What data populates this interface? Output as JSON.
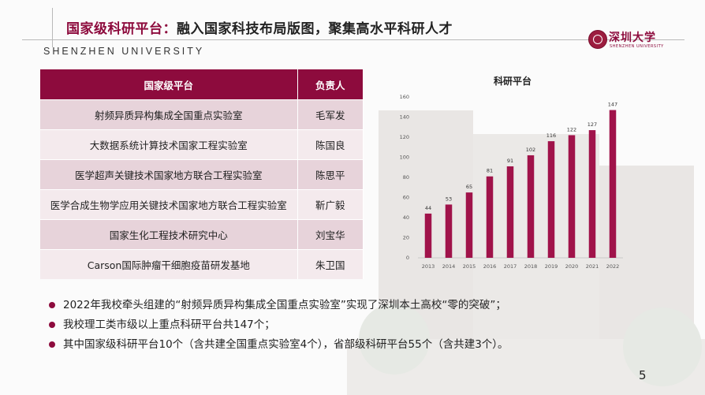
{
  "header": {
    "title_accent": "国家级科研平台：",
    "title_rest": "融入国家科技布局版图，聚集高水平科研人才",
    "subtitle": "SHENZHEN UNIVERSITY"
  },
  "logo": {
    "text": "深圳大学",
    "en": "SHENZHEN UNIVERSITY"
  },
  "table": {
    "headers": [
      "国家级平台",
      "负责人"
    ],
    "rows": [
      [
        "射频异质异构集成全国重点实验室",
        "毛军发"
      ],
      [
        "大数据系统计算技术国家工程实验室",
        "陈国良"
      ],
      [
        "医学超声关键技术国家地方联合工程实验室",
        "陈思平"
      ],
      [
        "医学合成生物学应用关键技术国家地方联合工程实验室",
        "靳广毅"
      ],
      [
        "国家生化工程技术研究中心",
        "刘宝华"
      ],
      [
        "Carson国际肿瘤干细胞疫苗研发基地",
        "朱卫国"
      ]
    ]
  },
  "chart_data": {
    "type": "bar",
    "title": "科研平台",
    "categories": [
      "2013",
      "2014",
      "2015",
      "2016",
      "2017",
      "2018",
      "2019",
      "2020",
      "2021",
      "2022"
    ],
    "values": [
      44,
      53,
      65,
      81,
      91,
      102,
      116,
      122,
      127,
      147
    ],
    "ylim": [
      0,
      160
    ],
    "yticks": [
      0,
      20,
      40,
      60,
      80,
      100,
      120,
      140,
      160
    ],
    "color": "#a0134a",
    "grid": false,
    "data_labels": true
  },
  "bullets": [
    "2022年我校牵头组建的“射频异质异构集成全国重点实验室”实现了深圳本土高校“零的突破”；",
    "我校理工类市级以上重点科研平台共147个；",
    "其中国家级科研平台10个（含共建全国重点实验室4个），省部级科研平台55个（含共建3个）。"
  ],
  "page_number": "5"
}
